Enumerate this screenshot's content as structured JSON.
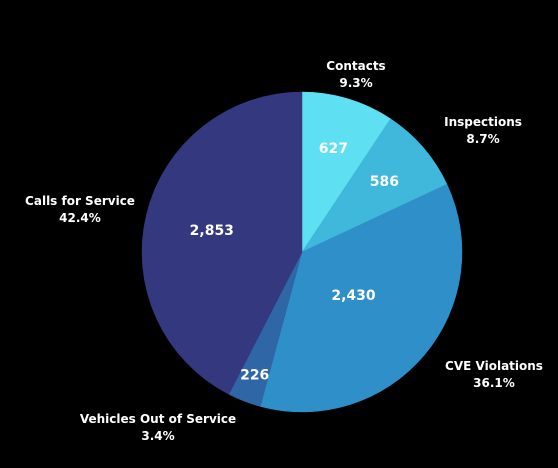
{
  "chart_data": {
    "type": "pie",
    "title": "",
    "slices": [
      {
        "name": "Contacts",
        "value": 627,
        "percent_label": "9.3%",
        "value_label": "627",
        "color": "#5fe0f2"
      },
      {
        "name": "Inspections",
        "value": 586,
        "percent_label": "8.7%",
        "value_label": "586",
        "color": "#3fb8dc"
      },
      {
        "name": "CVE Violations",
        "value": 2430,
        "percent_label": "36.1%",
        "value_label": "2,430",
        "color": "#2f8fc9"
      },
      {
        "name": "Vehicles Out of Service",
        "value": 226,
        "percent_label": "3.4%",
        "value_label": "226",
        "color": "#2e66a6"
      },
      {
        "name": "Calls for Service",
        "value": 2853,
        "percent_label": "42.4%",
        "value_label": "2,853",
        "color": "#34387f"
      }
    ],
    "start_angle": "12 o'clock",
    "direction": "clockwise",
    "legend": "none",
    "background": "#000000",
    "text_color": "#ffffff"
  }
}
